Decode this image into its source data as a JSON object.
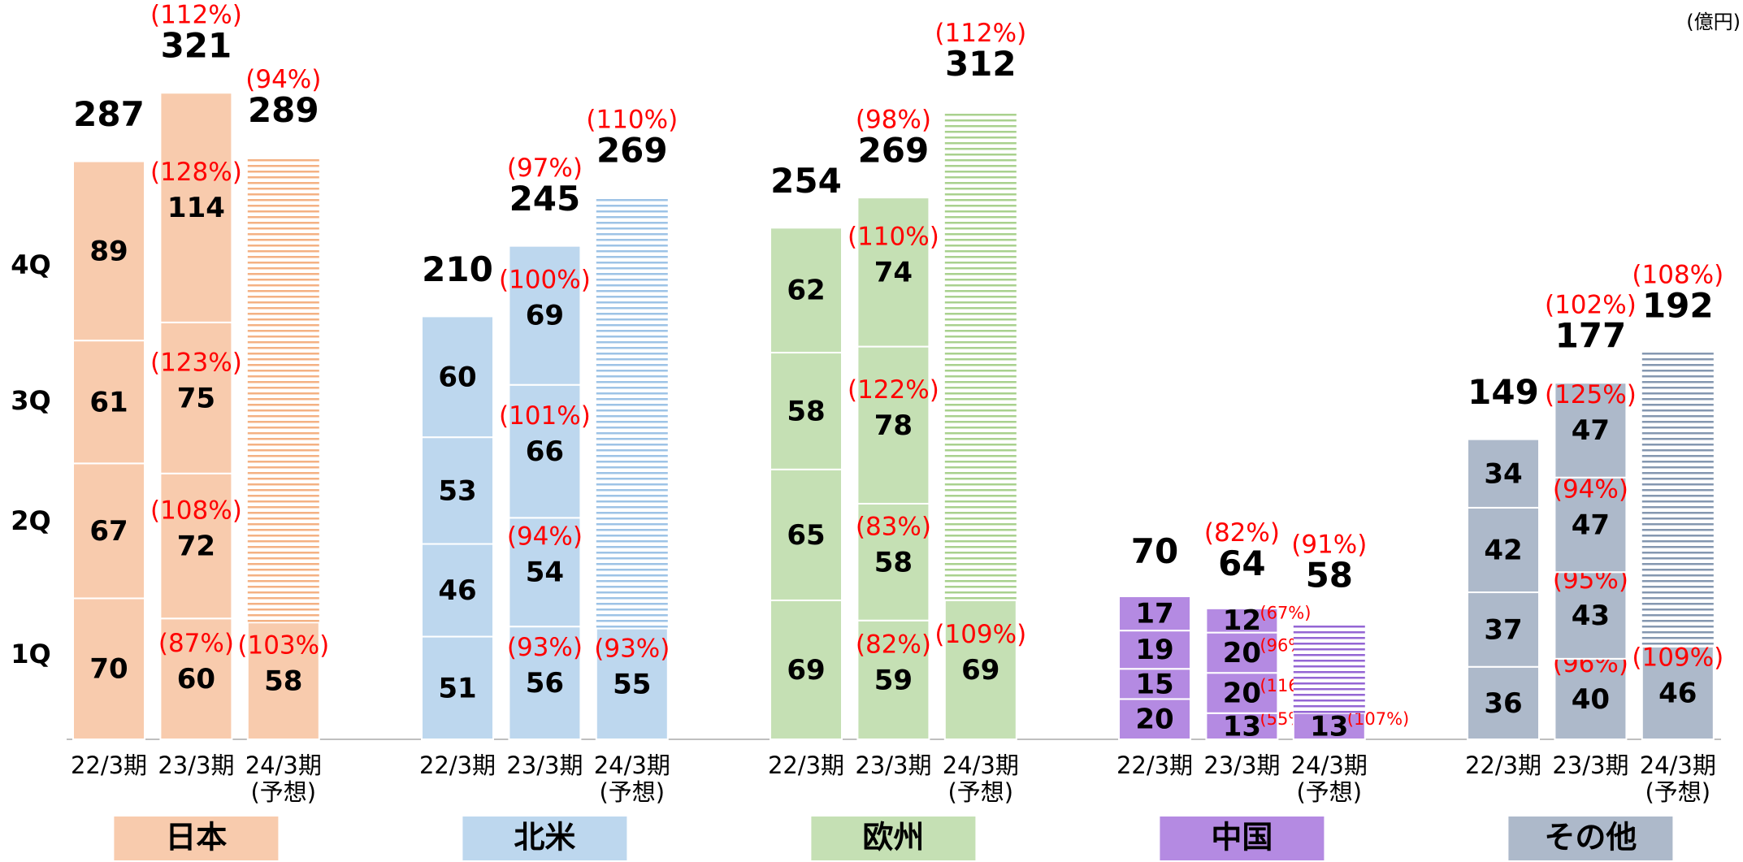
{
  "chart_data": {
    "type": "bar",
    "unit": "(億円)",
    "quarters": [
      "1Q",
      "2Q",
      "3Q",
      "4Q"
    ],
    "groups": [
      {
        "name": "日本",
        "color": "#f8cbad",
        "hatch_color": "#f4b183",
        "bars": [
          {
            "label": "22/3期",
            "segments": [
              70,
              67,
              61,
              89
            ],
            "total": 287
          },
          {
            "label": "23/3期",
            "segments": [
              60,
              72,
              75,
              114
            ],
            "segment_yoy": [
              "(87%)",
              "(108%)",
              "(123%)",
              "(128%)"
            ],
            "total": 321,
            "total_yoy": "(112%)"
          },
          {
            "label": "24/3期",
            "note": "(予想)",
            "segments": [
              58
            ],
            "segment_yoy": [
              "(103%)"
            ],
            "total": 289,
            "total_yoy": "(94%)"
          }
        ]
      },
      {
        "name": "北米",
        "color": "#bdd7ee",
        "hatch_color": "#9dc3e6",
        "bars": [
          {
            "label": "22/3期",
            "segments": [
              51,
              46,
              53,
              60
            ],
            "total": 210
          },
          {
            "label": "23/3期",
            "segments": [
              56,
              54,
              66,
              69
            ],
            "segment_yoy": [
              "(93%)",
              "(94%)",
              "(101%)",
              "(100%)"
            ],
            "total": 245,
            "total_yoy": "(97%)"
          },
          {
            "label": "24/3期",
            "note": "(予想)",
            "segments": [
              55
            ],
            "segment_yoy": [
              "(93%)"
            ],
            "total": 269,
            "total_yoy": "(110%)"
          }
        ]
      },
      {
        "name": "欧州",
        "color": "#c5e0b4",
        "hatch_color": "#a9d18e",
        "bars": [
          {
            "label": "22/3期",
            "segments": [
              69,
              65,
              58,
              62
            ],
            "total": 254
          },
          {
            "label": "23/3期",
            "segments": [
              59,
              58,
              78,
              74
            ],
            "segment_yoy": [
              "(82%)",
              "(83%)",
              "(122%)",
              "(110%)"
            ],
            "total": 269,
            "total_yoy": "(98%)"
          },
          {
            "label": "24/3期",
            "note": "(予想)",
            "segments": [
              69
            ],
            "segment_yoy": [
              "(109%)"
            ],
            "total": 312,
            "total_yoy": "(112%)"
          }
        ]
      },
      {
        "name": "中国",
        "color": "#b48ae2",
        "hatch_color": "#9466d4",
        "bars": [
          {
            "label": "22/3期",
            "segments": [
              20,
              15,
              19,
              17
            ],
            "total": 70
          },
          {
            "label": "23/3期",
            "segments": [
              13,
              20,
              20,
              12
            ],
            "segment_yoy": [
              "(55%)",
              "(116%)",
              "(96%)",
              "(67%)"
            ],
            "total": 64,
            "total_yoy": "(82%)"
          },
          {
            "label": "24/3期",
            "note": "(予想)",
            "segments": [
              13
            ],
            "segment_yoy": [
              "(107%)"
            ],
            "total": 58,
            "total_yoy": "(91%)"
          }
        ]
      },
      {
        "name": "その他",
        "color": "#adb9ca",
        "hatch_color": "#8497b0",
        "bars": [
          {
            "label": "22/3期",
            "segments": [
              36,
              37,
              42,
              34
            ],
            "total": 149
          },
          {
            "label": "23/3期",
            "segments": [
              40,
              43,
              47,
              47
            ],
            "segment_yoy": [
              "(96%)",
              "(95%)",
              "(94%)",
              "(125%)"
            ],
            "total": 177,
            "total_yoy": "(102%)"
          },
          {
            "label": "24/3期",
            "note": "(予想)",
            "segments": [
              46
            ],
            "segment_yoy": [
              "(109%)"
            ],
            "total": 192,
            "total_yoy": "(108%)"
          }
        ]
      }
    ]
  }
}
